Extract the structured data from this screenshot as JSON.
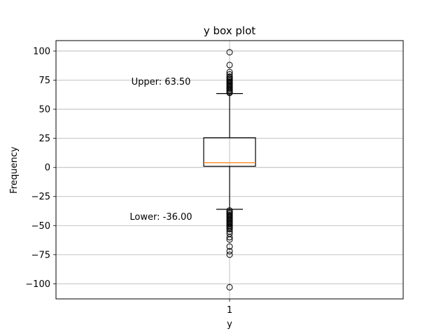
{
  "chart_data": {
    "type": "box",
    "title": "y box plot",
    "xlabel": "y",
    "ylabel": "Frequency",
    "categories": [
      "1"
    ],
    "ylim": [
      -113,
      109
    ],
    "yticks": [
      100,
      75,
      50,
      25,
      0,
      -25,
      -50,
      -75,
      -100
    ],
    "ytick_labels": [
      "100",
      "75",
      "50",
      "25",
      "0",
      "−25",
      "−50",
      "−75",
      "−100"
    ],
    "grid": true,
    "box": {
      "q1": 1,
      "median": 4,
      "q3": 25.5,
      "whisker_low": -36,
      "whisker_high": 63.5
    },
    "outliers": [
      64,
      65,
      66,
      67,
      68,
      69,
      70,
      71,
      72,
      73,
      74,
      75,
      76,
      77,
      78,
      80,
      82,
      88,
      99,
      -37,
      -38,
      -39,
      -40,
      -41,
      -42,
      -43,
      -44,
      -45,
      -46,
      -47,
      -48,
      -49,
      -50,
      -51,
      -52,
      -53,
      -55,
      -57,
      -60,
      -62,
      -68,
      -72,
      -75,
      -103
    ],
    "annotations": [
      {
        "text": "Upper: 63.50",
        "y": 74
      },
      {
        "text": "Lower: -36.00",
        "y": -42
      }
    ],
    "colors": {
      "box": "#000000",
      "median": "#ff7f0e",
      "grid": "#b0b0b0"
    }
  }
}
